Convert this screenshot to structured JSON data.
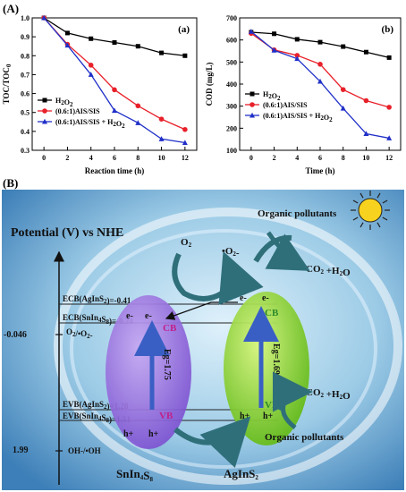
{
  "panel_labels": {
    "top": "(A)",
    "bottom": "(B)"
  },
  "chart_data": [
    {
      "type": "line",
      "panel": "(a)",
      "xlabel": "Reaction time (h)",
      "ylabel": "TOC/TOC0",
      "x": [
        0,
        2,
        4,
        6,
        8,
        10,
        12
      ],
      "xlim": [
        -1,
        13
      ],
      "ylim": [
        0.3,
        1.0
      ],
      "xticks": [
        "0",
        "2",
        "4",
        "6",
        "8",
        "10",
        "12"
      ],
      "yticks": [
        "0.3",
        "0.4",
        "0.5",
        "0.6",
        "0.7",
        "0.8",
        "0.9",
        "1.0"
      ],
      "series": [
        {
          "name": "H2O2",
          "color": "#000000",
          "marker": "square",
          "values": [
            1.0,
            0.92,
            0.89,
            0.87,
            0.85,
            0.815,
            0.8
          ]
        },
        {
          "name": "(0.6:1)AIS/SIS",
          "color": "#e8202a",
          "marker": "circle",
          "values": [
            1.0,
            0.86,
            0.75,
            0.62,
            0.535,
            0.465,
            0.41
          ]
        },
        {
          "name": "(0.6:1)AIS/SIS + H2O2",
          "color": "#2030c8",
          "marker": "triangle",
          "values": [
            1.0,
            0.855,
            0.7,
            0.51,
            0.445,
            0.36,
            0.34
          ]
        }
      ],
      "legend": "bottom-left",
      "grid": false
    },
    {
      "type": "line",
      "panel": "(b)",
      "xlabel": "Time (h)",
      "ylabel": "COD (mg/L)",
      "x": [
        0,
        2,
        4,
        6,
        8,
        10,
        12
      ],
      "xlim": [
        -1,
        13
      ],
      "ylim": [
        100,
        700
      ],
      "xticks": [
        "0",
        "2",
        "4",
        "6",
        "8",
        "10",
        "12"
      ],
      "yticks": [
        "100",
        "200",
        "300",
        "400",
        "500",
        "600",
        "700"
      ],
      "series": [
        {
          "name": "H2O2",
          "color": "#000000",
          "marker": "square",
          "values": [
            635,
            628,
            603,
            590,
            570,
            545,
            520
          ]
        },
        {
          "name": "(0.6:1)AIS/SIS",
          "color": "#e8202a",
          "marker": "circle",
          "values": [
            630,
            555,
            530,
            490,
            375,
            325,
            295
          ]
        },
        {
          "name": "(0.6:1)AIS/SIS + H2O2",
          "color": "#2030c8",
          "marker": "triangle",
          "values": [
            638,
            553,
            515,
            412,
            290,
            175,
            155
          ]
        }
      ],
      "legend": "bottom-left",
      "grid": false
    }
  ],
  "diagram": {
    "axis_title": "Potential (V) vs NHE",
    "potential_ticks": [
      "-0.046",
      "1.99"
    ],
    "level_labels": [
      "ECB(AgInS2)=-0.41",
      "ECB(SnIn4S8)=-0.24",
      "EVB(AgInS2)=1.28",
      "EVB(SnIn4S8)=1.51"
    ],
    "redox_left_top": "O2/•O2-",
    "redox_left_bottom": "OH-/•OH",
    "left_semiconductor": {
      "name": "SnIn4S8",
      "cb": "CB",
      "vb": "VB",
      "gap": "Eg=1.75",
      "color": "#8c62d8"
    },
    "right_semiconductor": {
      "name": "AgInS2",
      "cb": "CB",
      "vb": "VB",
      "gap": "Eg=1.69",
      "color": "#7fd01c"
    },
    "electron": "e-",
    "hole": "h+",
    "o2": "O2",
    "superoxide": "•O2-",
    "organic_top": "Organic pollutants",
    "product_top": "CO2 +H2O",
    "organic_bottom": "Organic pollutants",
    "product_bottom": "CO2 +H2O",
    "sun_color": "#f7d21e"
  }
}
